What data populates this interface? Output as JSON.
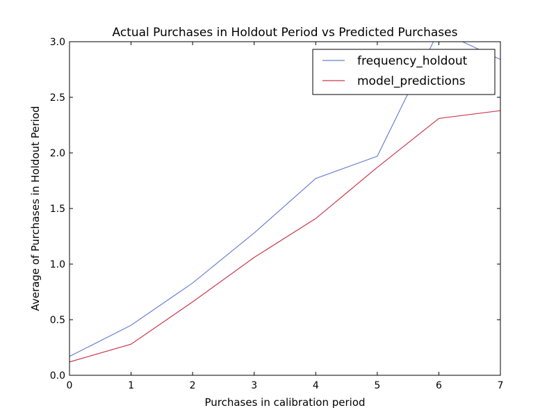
{
  "chart_data": {
    "type": "line",
    "title": "Actual Purchases in Holdout Period vs Predicted Purchases",
    "xlabel": "Purchases in calibration period",
    "ylabel": "Average of Purchases in Holdout Period",
    "x": [
      0,
      1,
      2,
      3,
      4,
      5,
      6,
      7
    ],
    "xlim": [
      0,
      7
    ],
    "ylim": [
      0.0,
      3.0
    ],
    "xticks": [
      "0",
      "1",
      "2",
      "3",
      "4",
      "5",
      "6",
      "7"
    ],
    "yticks": [
      "0.0",
      "0.5",
      "1.0",
      "1.5",
      "2.0",
      "2.5",
      "3.0"
    ],
    "grid": false,
    "legend_position": "top-right",
    "series": [
      {
        "name": "frequency_holdout",
        "color": "#6b80cf",
        "values": [
          0.17,
          0.45,
          0.83,
          1.28,
          1.77,
          1.97,
          3.1,
          2.84
        ]
      },
      {
        "name": "model_predictions",
        "color": "#c8384d",
        "values": [
          0.12,
          0.28,
          0.66,
          1.06,
          1.41,
          1.87,
          2.31,
          2.38
        ]
      }
    ]
  }
}
